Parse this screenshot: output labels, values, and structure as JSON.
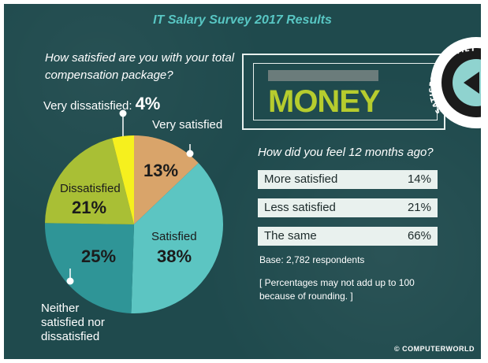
{
  "title": "IT Salary Survey 2017 Results",
  "question": "How satisfied are you with your total compensation package?",
  "chart_data": {
    "type": "pie",
    "title": "How satisfied are you with your total compensation package?",
    "slices": [
      {
        "label": "Very satisfied",
        "value": 13,
        "value_label": "13%",
        "color": "#d9a46a"
      },
      {
        "label": "Satisfied",
        "value": 38,
        "value_label": "38%",
        "color": "#5cc5c2"
      },
      {
        "label": "Neither satisfied nor dissatisfied",
        "value": 25,
        "value_label": "25%",
        "color": "#2f9597"
      },
      {
        "label": "Dissatisfied",
        "value": 21,
        "value_label": "21%",
        "color": "#a9bf35"
      },
      {
        "label": "Very dissatisfied",
        "value": 4,
        "value_label": "4%",
        "color": "#f6f01e"
      }
    ]
  },
  "labels": {
    "very_dissatisfied": "Very dissatisfied:",
    "very_satisfied": "Very satisfied",
    "dissatisfied": "Dissatisfied",
    "satisfied": "Satisfied",
    "neither_line1": "Neither",
    "neither_line2": "satisfied nor",
    "neither_line3": "dissatisfied"
  },
  "money": {
    "word": "MONEY",
    "meter_text": "SATISFACTION METER"
  },
  "past": {
    "question": "How did you feel 12 months ago?",
    "rows": [
      {
        "label": "More satisfied",
        "value": "14%"
      },
      {
        "label": "Less satisfied",
        "value": "21%"
      },
      {
        "label": "The same",
        "value": "66%"
      }
    ],
    "base": "Base: 2,782 respondents",
    "note": "[ Percentages may not add up to 100 because of rounding. ]"
  },
  "credit": "© COMPUTERWORLD"
}
